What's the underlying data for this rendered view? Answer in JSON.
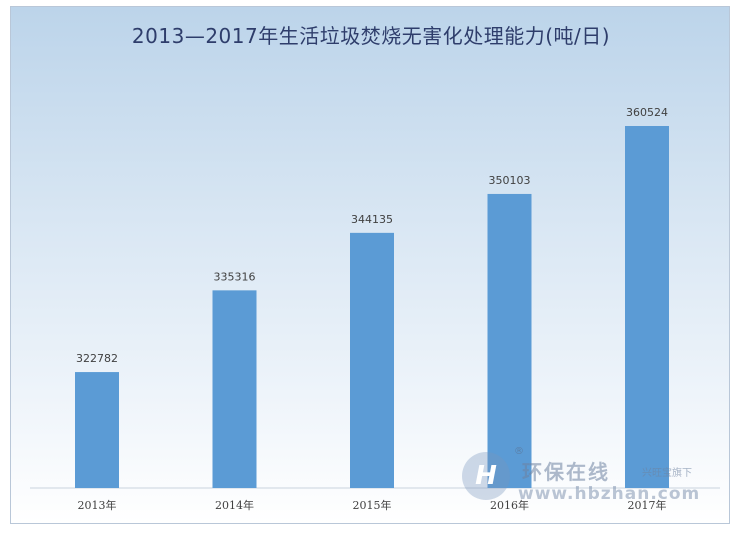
{
  "chart_data": {
    "type": "bar",
    "title": "2013—2017年生活垃圾焚烧无害化处理能力(吨/日)",
    "categories": [
      "2013年",
      "2014年",
      "2015年",
      "2016年",
      "2017年"
    ],
    "values": [
      322782,
      335316,
      344135,
      350103,
      360524
    ],
    "xlabel": "",
    "ylabel": "",
    "ylim": [
      305000,
      370000
    ],
    "grid": false,
    "legend": "none",
    "bar_color": "#5b9bd5"
  },
  "watermark": {
    "logo_letter": "H",
    "registered": "®",
    "name": "环保在线",
    "tag": "兴旺宝旗下",
    "url": "www.hbzhan.com"
  }
}
